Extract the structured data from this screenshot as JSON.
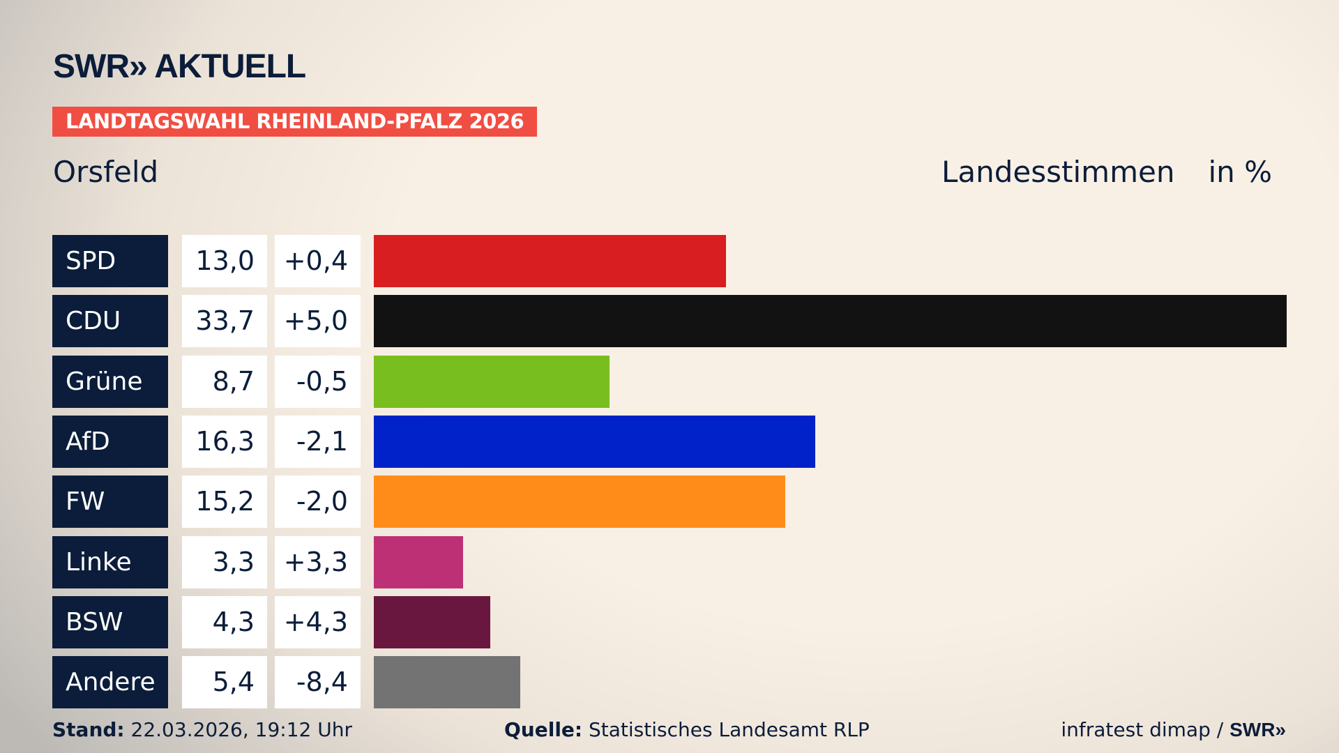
{
  "header": {
    "logo": "SWR» AKTUELL",
    "banner": "LANDTAGSWAHL RHEINLAND-PFALZ 2026",
    "place": "Orsfeld",
    "measure": "Landesstimmen",
    "unit": "in %"
  },
  "chart_data": {
    "type": "bar",
    "orientation": "horizontal",
    "unit": "%",
    "categories": [
      "SPD",
      "CDU",
      "Grüne",
      "AfD",
      "FW",
      "Linke",
      "BSW",
      "Andere"
    ],
    "values": [
      13.0,
      33.7,
      8.7,
      16.3,
      15.2,
      3.3,
      4.3,
      5.4
    ],
    "value_labels": [
      "13,0",
      "33,7",
      "8,7",
      "16,3",
      "15,2",
      "3,3",
      "4,3",
      "5,4"
    ],
    "diff_labels": [
      "+0,4",
      "+5,0",
      "-0,5",
      "-2,1",
      "-2,0",
      "+3,3",
      "+4,3",
      "-8,4"
    ],
    "colors": [
      "#d81e20",
      "#121212",
      "#78be1e",
      "#0022c8",
      "#ff8c18",
      "#be3075",
      "#6a173f",
      "#737373"
    ],
    "grid": false
  },
  "footer": {
    "stand_label": "Stand:",
    "stand": "22.03.2026, 19:12 Uhr",
    "source_label": "Quelle:",
    "source": "Statistisches Landesamt RLP",
    "credit": "infratest dimap / ",
    "credit_logo": "SWR»"
  }
}
